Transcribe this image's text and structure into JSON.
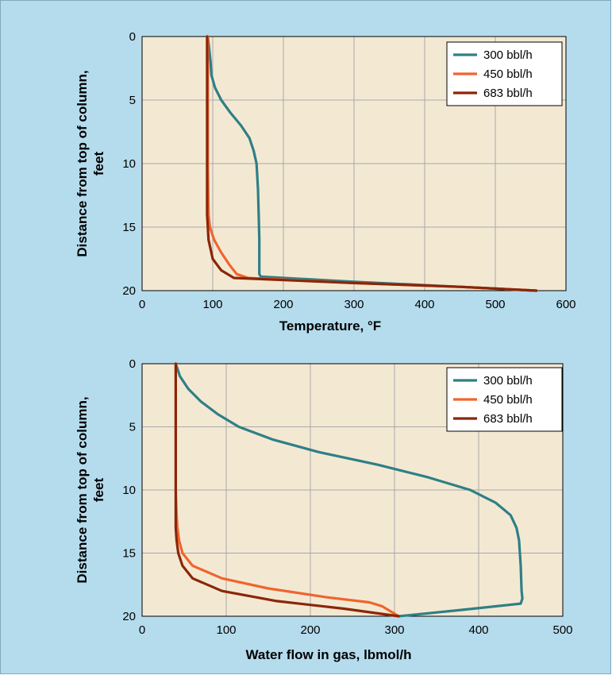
{
  "colors": {
    "background": "#b5dced",
    "plot_area": "#f3e9d3",
    "grid": "#a8a8a8",
    "legend_bg": "#ffffff"
  },
  "chart_data": [
    {
      "type": "line",
      "xlabel": "Temperature, °F",
      "ylabel": [
        "Distance from top of column,",
        "feet"
      ],
      "xlim": [
        0,
        600
      ],
      "ylim": [
        20,
        0
      ],
      "y_inverted": true,
      "xticks": [
        "0",
        "100",
        "200",
        "300",
        "400",
        "500",
        "600"
      ],
      "yticks": [
        "0",
        "5",
        "10",
        "15",
        "20"
      ],
      "grid": true,
      "legend_position": "top-right",
      "series": [
        {
          "name": "300 bbl/h",
          "color": "#2f7f86",
          "points": [
            [
              93,
              0
            ],
            [
              95,
              1
            ],
            [
              97,
              2
            ],
            [
              98,
              3
            ],
            [
              103,
              4
            ],
            [
              112,
              5
            ],
            [
              125,
              6
            ],
            [
              140,
              7
            ],
            [
              152,
              8
            ],
            [
              158,
              9
            ],
            [
              162,
              10
            ],
            [
              164,
              12
            ],
            [
              165,
              14
            ],
            [
              166,
              16
            ],
            [
              166,
              18
            ],
            [
              166,
              18.7
            ],
            [
              168,
              18.9
            ],
            [
              300,
              19.3
            ],
            [
              450,
              19.7
            ],
            [
              558,
              20
            ]
          ]
        },
        {
          "name": "450 bbl/h",
          "color": "#f0642e",
          "points": [
            [
              93,
              0
            ],
            [
              93,
              5
            ],
            [
              93,
              10
            ],
            [
              94,
              14
            ],
            [
              96,
              15
            ],
            [
              102,
              16
            ],
            [
              112,
              17
            ],
            [
              124,
              18
            ],
            [
              134,
              18.7
            ],
            [
              150,
              19
            ],
            [
              300,
              19.4
            ],
            [
              450,
              19.7
            ],
            [
              558,
              20
            ]
          ]
        },
        {
          "name": "683 bbl/h",
          "color": "#8b2608",
          "points": [
            [
              92,
              0
            ],
            [
              92,
              5
            ],
            [
              92,
              10
            ],
            [
              92,
              14
            ],
            [
              94,
              16
            ],
            [
              100,
              17.5
            ],
            [
              112,
              18.4
            ],
            [
              130,
              19
            ],
            [
              300,
              19.4
            ],
            [
              450,
              19.7
            ],
            [
              558,
              20
            ]
          ]
        }
      ]
    },
    {
      "type": "line",
      "xlabel": "Water flow in gas, lbmol/h",
      "ylabel": [
        "Distance from top of column,",
        "feet"
      ],
      "xlim": [
        0,
        500
      ],
      "ylim": [
        20,
        0
      ],
      "y_inverted": true,
      "xticks": [
        "0",
        "100",
        "200",
        "300",
        "400",
        "500"
      ],
      "yticks": [
        "0",
        "5",
        "10",
        "15",
        "20"
      ],
      "grid": true,
      "legend_position": "top-right",
      "series": [
        {
          "name": "300 bbl/h",
          "color": "#2f7f86",
          "points": [
            [
              40,
              0
            ],
            [
              45,
              1
            ],
            [
              55,
              2
            ],
            [
              70,
              3
            ],
            [
              90,
              4
            ],
            [
              115,
              5
            ],
            [
              155,
              6
            ],
            [
              210,
              7
            ],
            [
              280,
              8
            ],
            [
              340,
              9
            ],
            [
              390,
              10
            ],
            [
              420,
              11
            ],
            [
              438,
              12
            ],
            [
              445,
              13
            ],
            [
              448,
              14
            ],
            [
              450,
              16
            ],
            [
              451,
              18
            ],
            [
              452,
              18.6
            ],
            [
              450,
              19
            ],
            [
              380,
              19.5
            ],
            [
              305,
              20
            ]
          ]
        },
        {
          "name": "450 bbl/h",
          "color": "#f0642e",
          "points": [
            [
              40,
              0
            ],
            [
              40,
              5
            ],
            [
              40,
              10
            ],
            [
              41,
              12
            ],
            [
              42,
              13
            ],
            [
              44,
              14
            ],
            [
              48,
              15
            ],
            [
              60,
              16
            ],
            [
              95,
              17
            ],
            [
              150,
              17.8
            ],
            [
              220,
              18.5
            ],
            [
              270,
              18.9
            ],
            [
              285,
              19.2
            ],
            [
              295,
              19.6
            ],
            [
              305,
              20
            ]
          ]
        },
        {
          "name": "683 bbl/h",
          "color": "#8b2608",
          "points": [
            [
              40,
              0
            ],
            [
              40,
              5
            ],
            [
              40,
              10
            ],
            [
              40,
              13
            ],
            [
              41,
              14
            ],
            [
              43,
              15
            ],
            [
              48,
              16
            ],
            [
              60,
              17
            ],
            [
              95,
              18
            ],
            [
              160,
              18.8
            ],
            [
              240,
              19.4
            ],
            [
              305,
              20
            ]
          ]
        }
      ]
    }
  ]
}
